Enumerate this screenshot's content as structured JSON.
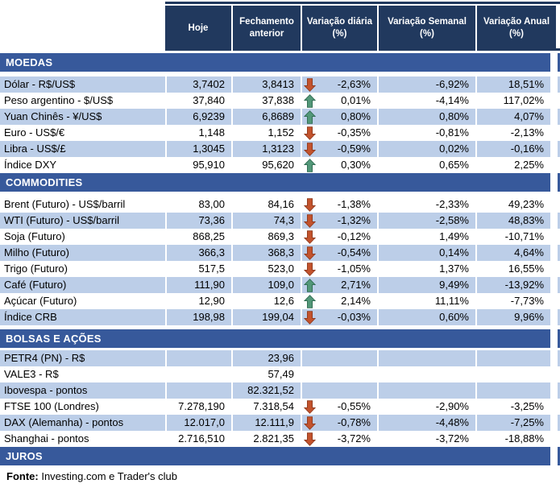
{
  "chart_data": {
    "type": "table",
    "columns": [
      "",
      "Hoje",
      "Fechamento anterior",
      "Variação diária (%)",
      "Variação Semanal (%)",
      "Variação Anual (%)"
    ],
    "sections": [
      {
        "title": "MOEDAS",
        "rows": [
          {
            "label": "Dólar - R$/US$",
            "hoje": "3,7402",
            "fechamento": "3,8413",
            "trend": "down",
            "var_diaria": "-2,63%",
            "var_semanal": "-6,92%",
            "var_anual": "18,51%",
            "shaded": true
          },
          {
            "label": "Peso argentino - $/US$",
            "hoje": "37,840",
            "fechamento": "37,838",
            "trend": "up",
            "var_diaria": "0,01%",
            "var_semanal": "-4,14%",
            "var_anual": "117,02%",
            "shaded": false
          },
          {
            "label": "Yuan Chinês - ¥/US$",
            "hoje": "6,9239",
            "fechamento": "6,8689",
            "trend": "up",
            "var_diaria": "0,80%",
            "var_semanal": "0,80%",
            "var_anual": "4,07%",
            "shaded": true
          },
          {
            "label": "Euro - US$/€",
            "hoje": "1,148",
            "fechamento": "1,152",
            "trend": "down",
            "var_diaria": "-0,35%",
            "var_semanal": "-0,81%",
            "var_anual": "-2,13%",
            "shaded": false
          },
          {
            "label": "Libra - US$/£",
            "hoje": "1,3045",
            "fechamento": "1,3123",
            "trend": "down",
            "var_diaria": "-0,59%",
            "var_semanal": "0,02%",
            "var_anual": "-0,16%",
            "shaded": true
          },
          {
            "label": "Índice DXY",
            "hoje": "95,910",
            "fechamento": "95,620",
            "trend": "up",
            "var_diaria": "0,30%",
            "var_semanal": "0,65%",
            "var_anual": "2,25%",
            "shaded": false
          }
        ]
      },
      {
        "title": "COMMODITIES",
        "rows": [
          {
            "label": "Brent (Futuro) - US$/barril",
            "hoje": "83,00",
            "fechamento": "84,16",
            "trend": "down",
            "var_diaria": "-1,38%",
            "var_semanal": "-2,33%",
            "var_anual": "49,23%",
            "shaded": false
          },
          {
            "label": "WTI (Futuro) - US$/barril",
            "hoje": "73,36",
            "fechamento": "74,3",
            "trend": "down",
            "var_diaria": "-1,32%",
            "var_semanal": "-2,58%",
            "var_anual": "48,83%",
            "shaded": true
          },
          {
            "label": "Soja (Futuro)",
            "hoje": "868,25",
            "fechamento": "869,3",
            "trend": "down",
            "var_diaria": "-0,12%",
            "var_semanal": "1,49%",
            "var_anual": "-10,71%",
            "shaded": false
          },
          {
            "label": "Milho (Futuro)",
            "hoje": "366,3",
            "fechamento": "368,3",
            "trend": "down",
            "var_diaria": "-0,54%",
            "var_semanal": "0,14%",
            "var_anual": "4,64%",
            "shaded": true
          },
          {
            "label": "Trigo (Futuro)",
            "hoje": "517,5",
            "fechamento": "523,0",
            "trend": "down",
            "var_diaria": "-1,05%",
            "var_semanal": "1,37%",
            "var_anual": "16,55%",
            "shaded": false
          },
          {
            "label": "Café (Futuro)",
            "hoje": "111,90",
            "fechamento": "109,0",
            "trend": "up",
            "var_diaria": "2,71%",
            "var_semanal": "9,49%",
            "var_anual": "-13,92%",
            "shaded": true
          },
          {
            "label": "Açúcar (Futuro)",
            "hoje": "12,90",
            "fechamento": "12,6",
            "trend": "up",
            "var_diaria": "2,14%",
            "var_semanal": "11,11%",
            "var_anual": "-7,73%",
            "shaded": false
          },
          {
            "label": "Índice CRB",
            "hoje": "198,98",
            "fechamento": "199,04",
            "trend": "down",
            "var_diaria": "-0,03%",
            "var_semanal": "0,60%",
            "var_anual": "9,96%",
            "shaded": true
          }
        ]
      },
      {
        "title": "BOLSAS E AÇÕES",
        "rows": [
          {
            "label": "PETR4 (PN) - R$",
            "hoje": "",
            "fechamento": "23,96",
            "trend": "",
            "var_diaria": "",
            "var_semanal": "",
            "var_anual": "",
            "shaded": true
          },
          {
            "label": "VALE3 - R$",
            "hoje": "",
            "fechamento": "57,49",
            "trend": "",
            "var_diaria": "",
            "var_semanal": "",
            "var_anual": "",
            "shaded": false
          },
          {
            "label": "Ibovespa - pontos",
            "hoje": "",
            "fechamento": "82.321,52",
            "trend": "",
            "var_diaria": "",
            "var_semanal": "",
            "var_anual": "",
            "shaded": true
          },
          {
            "label": "FTSE 100 (Londres)",
            "hoje": "7.278,190",
            "fechamento": "7.318,54",
            "trend": "down",
            "var_diaria": "-0,55%",
            "var_semanal": "-2,90%",
            "var_anual": "-3,25%",
            "shaded": false
          },
          {
            "label": "DAX (Alemanha) - pontos",
            "hoje": "12.017,0",
            "fechamento": "12.111,9",
            "trend": "down",
            "var_diaria": "-0,78%",
            "var_semanal": "-4,48%",
            "var_anual": "-7,25%",
            "shaded": true
          },
          {
            "label": "Shanghai - pontos",
            "hoje": "2.716,510",
            "fechamento": "2.821,35",
            "trend": "down",
            "var_diaria": "-3,72%",
            "var_semanal": "-3,72%",
            "var_anual": "-18,88%",
            "shaded": false
          }
        ]
      },
      {
        "title": "JUROS",
        "rows": []
      }
    ]
  },
  "footer": {
    "label": "Fonte:",
    "text": " Investing.com e Trader's club"
  },
  "icons": {
    "up": "up-arrow-icon",
    "down": "down-arrow-icon"
  },
  "colors": {
    "header_bg": "#21395E",
    "section_bg": "#37599B",
    "row_shaded_bg": "#BCCEE8",
    "header_text": "#FFFFFF",
    "body_text": "#000000",
    "arrow_up": "#539879",
    "arrow_up_border": "#2F6B51",
    "arrow_down": "#C3532D",
    "arrow_down_border": "#8F3A1E"
  }
}
